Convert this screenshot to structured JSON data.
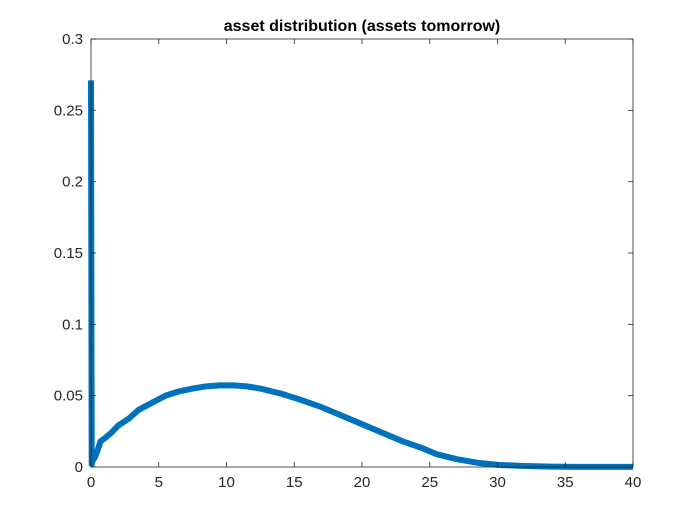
{
  "chart_data": {
    "type": "line",
    "title": "asset distribution (assets tomorrow)",
    "xlabel": "",
    "ylabel": "",
    "xlim": [
      0,
      40
    ],
    "ylim": [
      0,
      0.3
    ],
    "x_ticks": [
      0,
      5,
      10,
      15,
      20,
      25,
      30,
      35,
      40
    ],
    "y_ticks": [
      0,
      0.05,
      0.1,
      0.15,
      0.2,
      0.25,
      0.3
    ],
    "x_tick_labels": [
      "0",
      "5",
      "10",
      "15",
      "20",
      "25",
      "30",
      "35",
      "40"
    ],
    "y_tick_labels": [
      "0",
      "0.05",
      "0.1",
      "0.15",
      "0.2",
      "0.25",
      "0.3"
    ],
    "grid": false,
    "legend": "none",
    "series": [
      {
        "color": "#0072BD",
        "x": [
          0,
          0.05,
          0.1,
          0.3,
          0.5,
          0.7,
          1.0,
          1.5,
          2.0,
          2.8,
          3.5,
          4.5,
          5.5,
          6.5,
          7.5,
          8.5,
          9.5,
          10.5,
          11.5,
          12.5,
          14.0,
          15.5,
          17.0,
          18.5,
          20.0,
          21.5,
          23.0,
          24.5,
          25.5,
          27.0,
          28.5,
          30.0,
          32.0,
          34.0,
          36.0,
          38.0,
          40.0
        ],
        "y": [
          0.271,
          0.002,
          0.004,
          0.007,
          0.012,
          0.018,
          0.02,
          0.024,
          0.029,
          0.034,
          0.04,
          0.045,
          0.05,
          0.053,
          0.055,
          0.0565,
          0.0572,
          0.0572,
          0.0565,
          0.055,
          0.0515,
          0.047,
          0.042,
          0.036,
          0.03,
          0.024,
          0.018,
          0.013,
          0.009,
          0.0055,
          0.003,
          0.0015,
          0.0007,
          0.0003,
          0.0001,
          0.0001,
          0.0001
        ]
      }
    ]
  }
}
